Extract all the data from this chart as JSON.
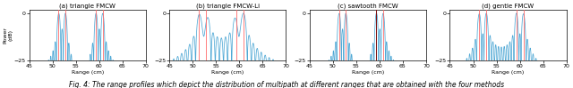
{
  "subplots": [
    {
      "title": "(a) triangle FMCW",
      "xlabel": "Range (cm)",
      "ylabel": "Power\n(dB)",
      "xlim": [
        45,
        70
      ],
      "ylim": [
        -25,
        2
      ],
      "yticks": [
        0,
        -25
      ],
      "xticks": [
        45,
        50,
        55,
        60,
        65,
        70
      ],
      "red_lines": [
        51.3,
        52.8,
        59.3,
        60.8
      ],
      "signal_type": "triangle"
    },
    {
      "title": "(b) triangle FMCW-Li",
      "xlabel": "Range (cm)",
      "ylabel": "",
      "xlim": [
        45,
        70
      ],
      "ylim": [
        -25,
        2
      ],
      "yticks": [
        0,
        -25
      ],
      "xticks": [
        45,
        50,
        55,
        60,
        65,
        70
      ],
      "red_lines": [
        51.3,
        52.8,
        59.3,
        60.8
      ],
      "signal_type": "triangle_li"
    },
    {
      "title": "(c) sawtooth FMCW",
      "xlabel": "Range (cm)",
      "ylabel": "",
      "xlim": [
        45,
        70
      ],
      "ylim": [
        -25,
        2
      ],
      "yticks": [
        0,
        -25
      ],
      "xticks": [
        45,
        50,
        55,
        60,
        65,
        70
      ],
      "red_lines": [
        51.3,
        52.8,
        59.3,
        60.8
      ],
      "dark_line": 59.3,
      "signal_type": "sawtooth"
    },
    {
      "title": "(d) gentle FMCW",
      "xlabel": "Range (cm)",
      "ylabel": "",
      "xlim": [
        45,
        70
      ],
      "ylim": [
        -25,
        2
      ],
      "yticks": [
        0,
        -25
      ],
      "xticks": [
        45,
        50,
        55,
        60,
        65,
        70
      ],
      "red_lines": [
        51.3,
        52.8,
        59.3,
        60.8
      ],
      "signal_type": "gentle"
    }
  ],
  "line_color": "#4FA8D5",
  "red_line_color": "#FF6666",
  "dark_red_line_color": "#660000",
  "bg_color": "#FFFFFF",
  "caption": "Fig. 4: The range profiles which depict the distribution of multipath at different ranges that are obtained with the four methods"
}
